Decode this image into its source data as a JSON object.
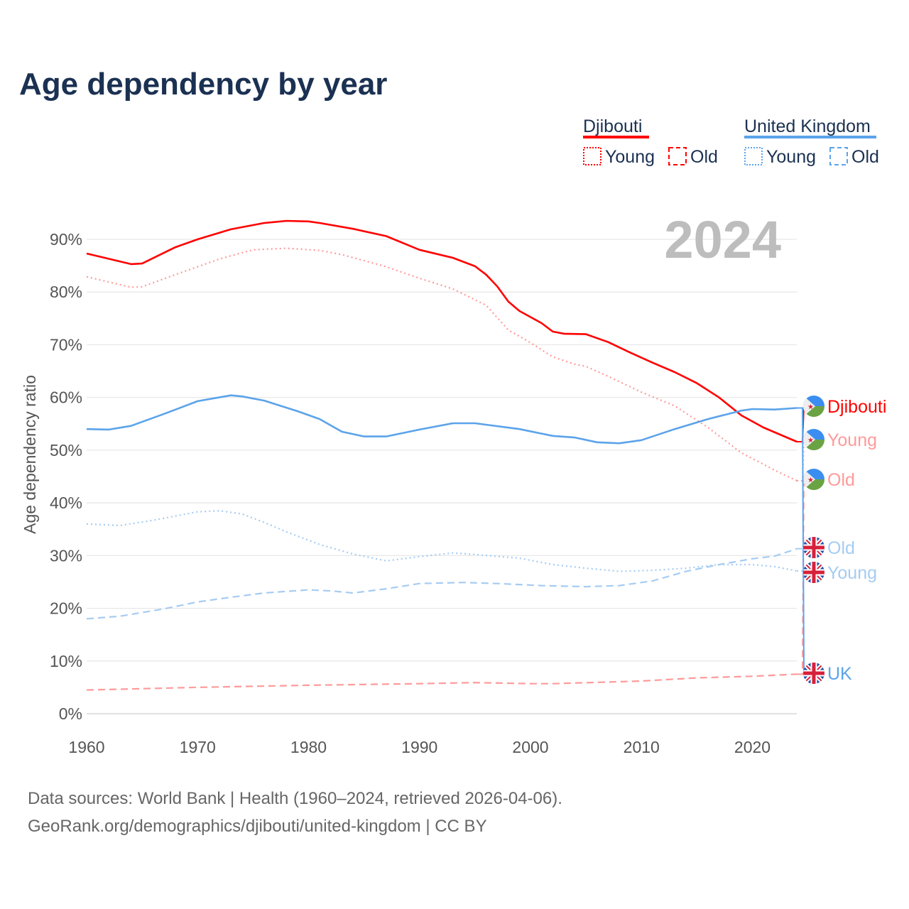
{
  "chart_data": {
    "type": "line",
    "title": "Age dependency by year",
    "ylabel": "Age dependency ratio",
    "xlabel": "",
    "xlim": [
      1960,
      2024
    ],
    "ylim": [
      0,
      90
    ],
    "x_ticks": [
      "1960",
      "1970",
      "1980",
      "1990",
      "2000",
      "2010",
      "2020"
    ],
    "y_ticks": [
      "0%",
      "10%",
      "20%",
      "30%",
      "40%",
      "50%",
      "60%",
      "70%",
      "80%",
      "90%"
    ],
    "year_label": "2024",
    "grid": true,
    "legend": {
      "placement": "top-right",
      "groups": [
        {
          "country": "Djibouti",
          "color": "#ff0000",
          "items": [
            "Young",
            "Old"
          ]
        },
        {
          "country": "United Kingdom",
          "color": "#5ba3ea",
          "items": [
            "Young",
            "Old"
          ]
        }
      ]
    },
    "series": [
      {
        "name": "Djibouti",
        "end_label": "Djibouti",
        "flag": "djibouti-flag",
        "color": "#ff0000",
        "style": "solid",
        "x": [
          1960,
          1964,
          1965,
          1968,
          1970,
          1973,
          1976,
          1978,
          1980,
          1981,
          1984,
          1987,
          1990,
          1993,
          1995,
          1996,
          1997,
          1998,
          1999,
          2001,
          2002,
          2003,
          2005,
          2007,
          2009,
          2011,
          2013,
          2015,
          2017,
          2019,
          2021,
          2024
        ],
        "y": [
          87.3,
          85.3,
          85.4,
          88.5,
          90,
          91.9,
          93.1,
          93.5,
          93.4,
          93.1,
          92,
          90.6,
          88,
          86.5,
          84.9,
          83.3,
          81.1,
          78.2,
          76.4,
          74.1,
          72.5,
          72.1,
          72,
          70.5,
          68.5,
          66.6,
          64.8,
          62.7,
          60,
          56.6,
          54.3,
          51.6
        ]
      },
      {
        "name": "Djibouti Young",
        "end_label": "Young",
        "flag": "djibouti-flag",
        "color": "#ff9a9a",
        "style": "dotted",
        "x": [
          1960,
          1964,
          1965,
          1968,
          1972,
          1975,
          1978,
          1981,
          1983,
          1987,
          1990,
          1993,
          1996,
          1998,
          2000,
          2002,
          2004,
          2005,
          2007,
          2010,
          2013,
          2016,
          2019,
          2022,
          2024
        ],
        "y": [
          82.9,
          80.9,
          81,
          83.3,
          86.3,
          88,
          88.3,
          87.9,
          87.1,
          84.8,
          82.6,
          80.6,
          77.5,
          72.8,
          70.4,
          67.7,
          66.3,
          65.9,
          64,
          61,
          58.4,
          54.3,
          49.5,
          46.2,
          44.2
        ]
      },
      {
        "name": "Djibouti Old",
        "end_label": "Old",
        "flag": "djibouti-flag",
        "color": "#ff9a9a",
        "style": "dashed",
        "x": [
          1960,
          1970,
          1980,
          1990,
          1995,
          2000,
          2002,
          2010,
          2015,
          2020,
          2024
        ],
        "y": [
          4.5,
          5.0,
          5.4,
          5.7,
          5.9,
          5.7,
          5.7,
          6.2,
          6.8,
          7.1,
          7.5
        ]
      },
      {
        "name": "United Kingdom",
        "end_label": "UK",
        "flag": "uk-flag",
        "color": "#5ba3ea",
        "style": "solid",
        "x": [
          1960,
          1962,
          1964,
          1967,
          1970,
          1973,
          1974,
          1976,
          1979,
          1981,
          1983,
          1985,
          1987,
          1990,
          1993,
          1995,
          1999,
          2002,
          2004,
          2006,
          2008,
          2010,
          2013,
          2016,
          2019,
          2020,
          2022,
          2024
        ],
        "y": [
          54,
          53.9,
          54.6,
          56.9,
          59.3,
          60.4,
          60.2,
          59.4,
          57.4,
          55.9,
          53.5,
          52.6,
          52.6,
          53.9,
          55.1,
          55.1,
          54,
          52.7,
          52.4,
          51.5,
          51.3,
          51.9,
          54,
          55.9,
          57.5,
          57.8,
          57.7,
          58
        ]
      },
      {
        "name": "United Kingdom Young",
        "end_label": "Young",
        "flag": "uk-flag",
        "color": "#a6ccf2",
        "style": "dotted",
        "x": [
          1960,
          1963,
          1966,
          1970,
          1972,
          1974,
          1976,
          1978,
          1981,
          1984,
          1987,
          1990,
          1993,
          1995,
          1999,
          2002,
          2005,
          2008,
          2011,
          2014,
          2017,
          2020,
          2022,
          2024
        ],
        "y": [
          36,
          35.7,
          36.7,
          38.3,
          38.5,
          37.9,
          36.3,
          34.5,
          32.1,
          30.3,
          29,
          29.8,
          30.5,
          30.2,
          29.5,
          28.3,
          27.6,
          27,
          27.2,
          27.6,
          28.3,
          28.3,
          27.9,
          27.1
        ]
      },
      {
        "name": "United Kingdom Old",
        "end_label": "Old",
        "flag": "uk-flag",
        "color": "#a6ccf2",
        "style": "dashed",
        "x": [
          1960,
          1963,
          1967,
          1970,
          1973,
          1976,
          1980,
          1982,
          1984,
          1987,
          1990,
          1994,
          1997,
          2001,
          2005,
          2008,
          2011,
          2014,
          2017,
          2020,
          2022,
          2024
        ],
        "y": [
          18,
          18.5,
          19.9,
          21.2,
          22.1,
          22.9,
          23.5,
          23.3,
          22.9,
          23.7,
          24.7,
          24.9,
          24.7,
          24.3,
          24.1,
          24.3,
          25.2,
          27,
          28.3,
          29.4,
          29.9,
          31.3
        ]
      }
    ]
  },
  "footer": {
    "line1": "Data sources: World Bank | Health (1960–2024, retrieved 2026-04-06).",
    "line2": "GeoRank.org/demographics/djibouti/united-kingdom | CC BY"
  }
}
